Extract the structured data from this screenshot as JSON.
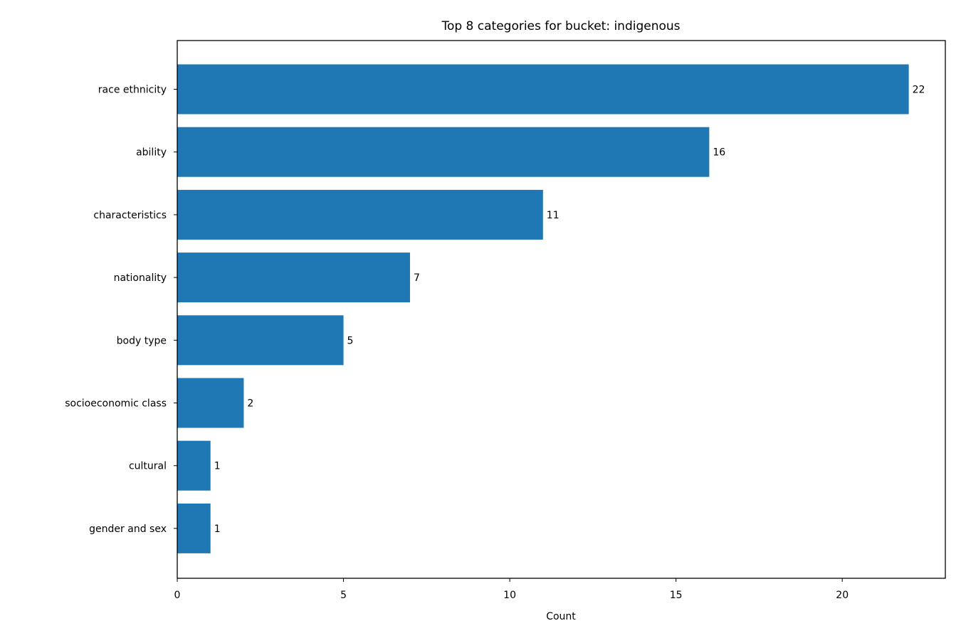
{
  "chart_data": {
    "type": "bar",
    "orientation": "horizontal",
    "title": "Top 8 categories for bucket: indigenous",
    "xlabel": "Count",
    "ylabel": "",
    "categories": [
      "race ethnicity",
      "ability",
      "characteristics",
      "nationality",
      "body type",
      "socioeconomic class",
      "cultural",
      "gender and sex"
    ],
    "values": [
      22,
      16,
      11,
      7,
      5,
      2,
      1,
      1
    ],
    "xlim": [
      0,
      23.1
    ],
    "xticks": [
      0,
      5,
      10,
      15,
      20
    ],
    "grid": false,
    "legend": "none",
    "bar_color": "#1f77b4",
    "show_value_labels": true
  }
}
